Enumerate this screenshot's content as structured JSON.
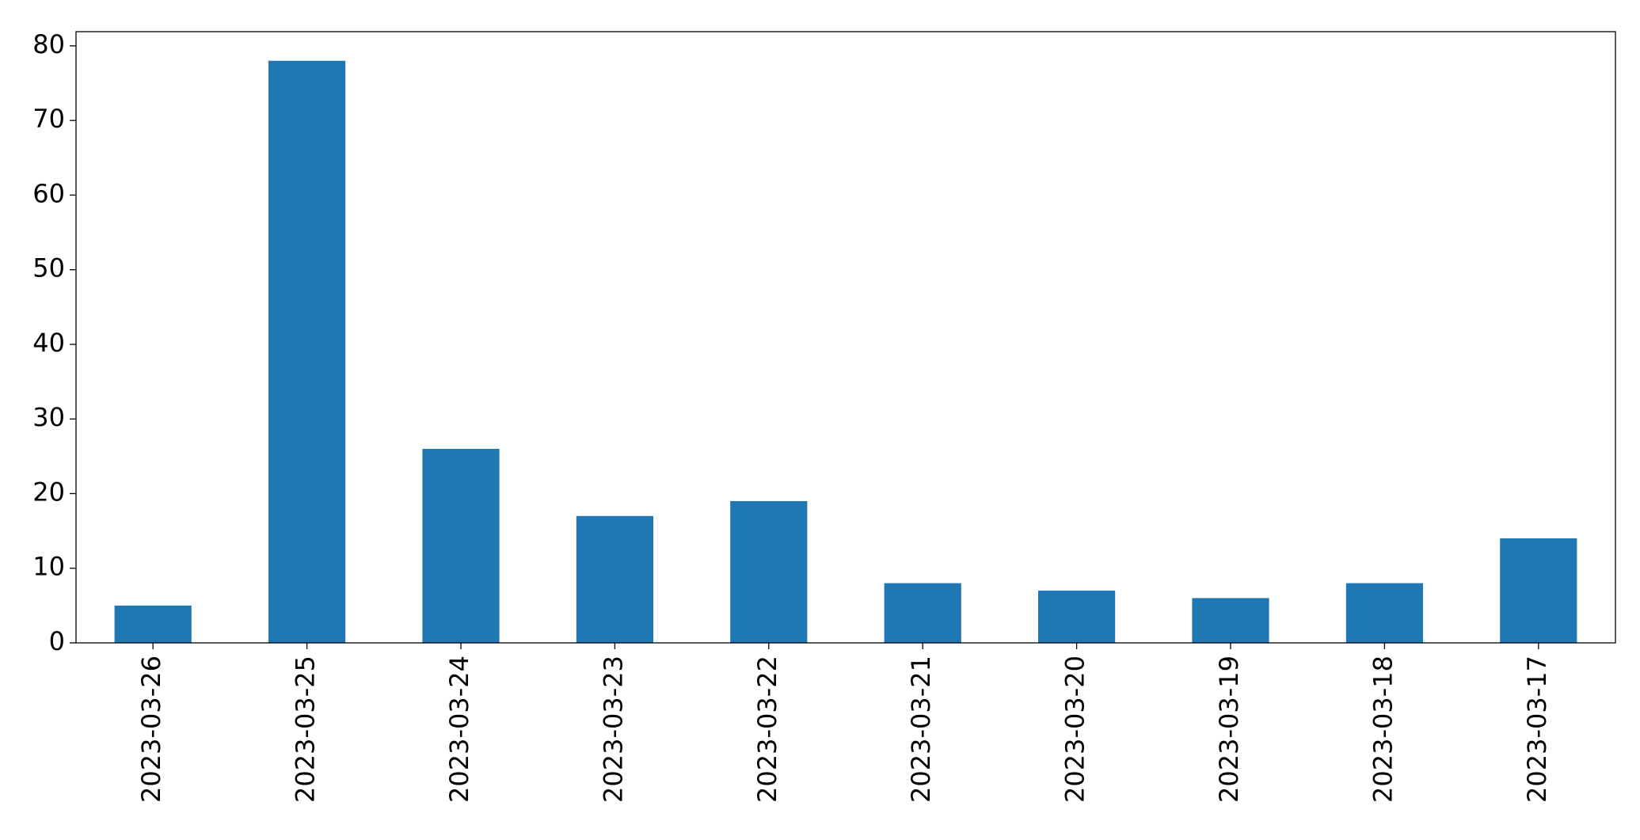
{
  "chart_data": {
    "type": "bar",
    "categories": [
      "2023-03-26",
      "2023-03-25",
      "2023-03-24",
      "2023-03-23",
      "2023-03-22",
      "2023-03-21",
      "2023-03-20",
      "2023-03-19",
      "2023-03-18",
      "2023-03-17"
    ],
    "values": [
      5,
      78,
      26,
      17,
      19,
      8,
      7,
      6,
      8,
      14
    ],
    "color": "#1f77b4",
    "ylim": [
      0,
      81.9
    ],
    "yticks": [
      0,
      10,
      20,
      30,
      40,
      50,
      60,
      70,
      80
    ],
    "grid": false
  }
}
